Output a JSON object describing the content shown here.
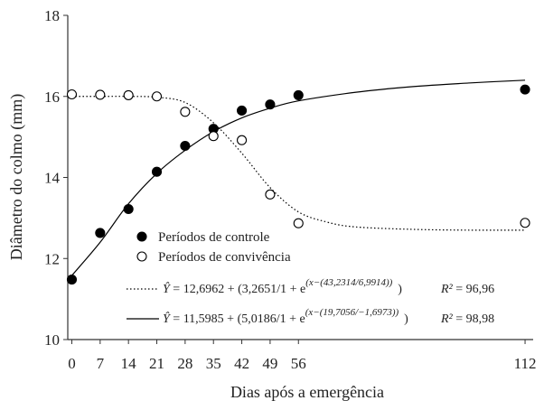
{
  "chart_data": {
    "type": "scatter",
    "x_label": "Dias após a emergência",
    "y_label": "Diâmetro do colmo (mm)",
    "x": [
      0,
      7,
      14,
      21,
      28,
      35,
      42,
      49,
      56,
      112
    ],
    "xlim": [
      -1,
      114
    ],
    "xticks": [
      0,
      7,
      14,
      21,
      28,
      35,
      42,
      49,
      56,
      112
    ],
    "ylim": [
      10,
      18
    ],
    "yticks": [
      10,
      12,
      14,
      16,
      18
    ],
    "series": [
      {
        "name": "Períodos de controle",
        "marker": "filled",
        "color": "#000000",
        "values": [
          11.48,
          12.63,
          13.22,
          14.14,
          14.78,
          15.2,
          15.65,
          15.8,
          16.03,
          16.17
        ]
      },
      {
        "name": "Períodos de convivência",
        "marker": "open",
        "color": "#000000",
        "values": [
          16.05,
          16.04,
          16.03,
          16.0,
          15.62,
          15.02,
          14.92,
          13.58,
          12.87,
          12.88
        ]
      }
    ],
    "fits": [
      {
        "type": "line",
        "style": "dotted",
        "color": "#000000",
        "x": [
          0,
          7,
          14,
          21,
          28,
          35,
          42,
          49,
          56,
          63,
          70,
          84,
          98,
          112
        ],
        "values": [
          16.0,
          16.0,
          16.0,
          15.98,
          15.85,
          15.35,
          14.6,
          13.75,
          13.15,
          12.9,
          12.78,
          12.72,
          12.7,
          12.7
        ],
        "equation": {
          "lhs": "Ŷ",
          "rhs": " = 12,6962 + (3,2651/1 + e",
          "exponent": "(x−(43,2314/6,9914))",
          "close": ")",
          "r2_name": "R²",
          "r2": " = 96,96"
        }
      },
      {
        "type": "line",
        "style": "solid",
        "color": "#000000",
        "x": [
          0,
          7,
          14,
          21,
          28,
          35,
          42,
          49,
          56,
          70,
          84,
          98,
          112
        ],
        "values": [
          11.58,
          12.4,
          13.35,
          14.1,
          14.67,
          15.13,
          15.47,
          15.71,
          15.89,
          16.1,
          16.24,
          16.33,
          16.4
        ],
        "equation": {
          "lhs": "Ŷ",
          "rhs": " = 11,5985 + (5,0186/1 + e",
          "exponent": "(x−(19,7056/−1,6973))",
          "close": ")",
          "r2_name": "R²",
          "r2": " = 98,98"
        }
      }
    ]
  }
}
